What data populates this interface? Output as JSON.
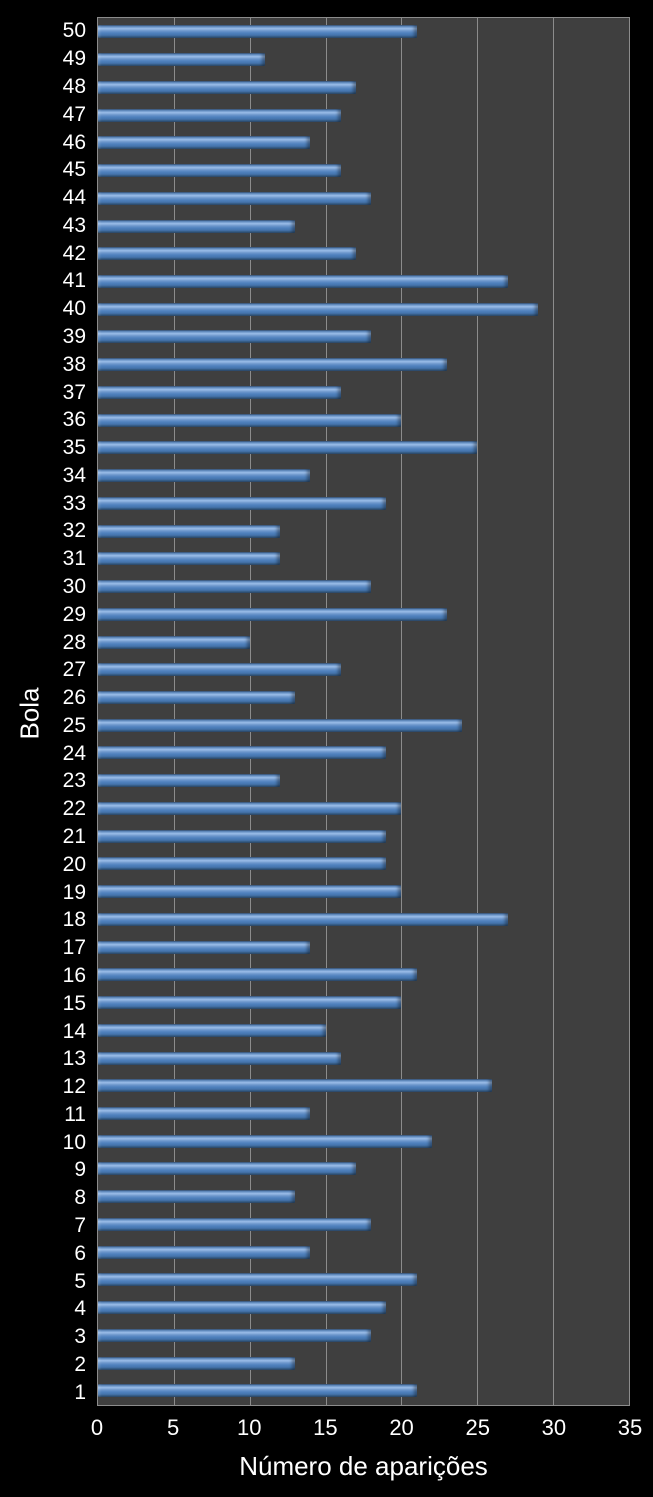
{
  "chart_data": {
    "type": "bar",
    "orientation": "horizontal",
    "title": "",
    "xlabel": "Número de aparições",
    "ylabel": "Bola",
    "categories": [
      "50",
      "49",
      "48",
      "47",
      "46",
      "45",
      "44",
      "43",
      "42",
      "41",
      "40",
      "39",
      "38",
      "37",
      "36",
      "35",
      "34",
      "33",
      "32",
      "31",
      "30",
      "29",
      "28",
      "27",
      "26",
      "25",
      "24",
      "23",
      "22",
      "21",
      "20",
      "19",
      "18",
      "17",
      "16",
      "15",
      "14",
      "13",
      "12",
      "11",
      "10",
      "9",
      "8",
      "7",
      "6",
      "5",
      "4",
      "3",
      "2",
      "1"
    ],
    "values": [
      21,
      11,
      17,
      16,
      14,
      16,
      18,
      13,
      17,
      27,
      29,
      18,
      23,
      16,
      20,
      25,
      14,
      19,
      12,
      12,
      18,
      23,
      10,
      16,
      13,
      24,
      19,
      12,
      20,
      19,
      19,
      20,
      27,
      14,
      21,
      20,
      15,
      16,
      26,
      14,
      22,
      17,
      13,
      18,
      14,
      21,
      19,
      18,
      13,
      21
    ],
    "xlim": [
      0,
      35
    ],
    "xticks": [
      0,
      5,
      10,
      15,
      20,
      25,
      30,
      35
    ],
    "grid": true,
    "legend": false,
    "colors": {
      "page_background": "#000000",
      "plot_background": "#3F3F3F",
      "gridline": "#8c8c8c",
      "bar_main": "#4F81BD",
      "bar_highlight": "#9BBDE8",
      "bar_shadow": "#24436A",
      "text": "#FFFFFF"
    }
  }
}
